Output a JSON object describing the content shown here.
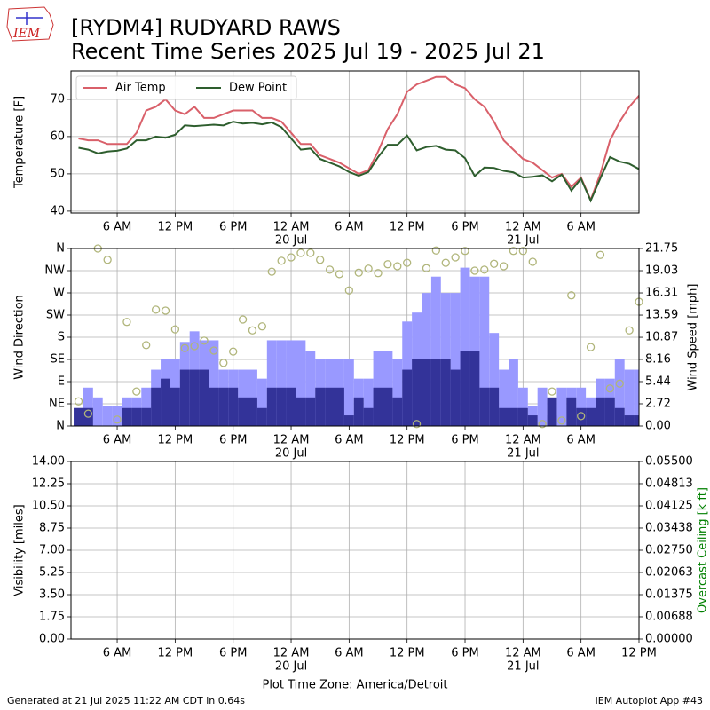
{
  "header": {
    "logo": "IEM",
    "title_line1": "[RYDM4] RUDYARD RAWS",
    "title_line2": "Recent Time Series 2025 Jul 19 - 2025 Jul 21"
  },
  "chart_data": [
    {
      "type": "line",
      "ylabel": "Temperature [F]",
      "grid": true,
      "legend": "upper left",
      "xlim": [
        1.22,
        60
      ],
      "xticks": [
        {
          "value": 6,
          "label": "6 AM"
        },
        {
          "value": 12,
          "label": "12 PM"
        },
        {
          "value": 18,
          "label": "6 PM"
        },
        {
          "value": 24,
          "label": "12 AM"
        },
        {
          "value": 30,
          "label": "6 AM"
        },
        {
          "value": 36,
          "label": "12 PM"
        },
        {
          "value": 42,
          "label": "6 PM"
        },
        {
          "value": 48,
          "label": "12 AM"
        },
        {
          "value": 54,
          "label": "6 AM"
        }
      ],
      "xtick_sublabels": [
        {
          "value": 24,
          "label": "20 Jul"
        },
        {
          "value": 48,
          "label": "21 Jul"
        }
      ],
      "ylim": [
        39.5,
        77.6
      ],
      "yticks": [
        40,
        50,
        60,
        70
      ],
      "x": [
        2,
        3,
        4,
        5,
        6,
        7,
        8,
        9,
        10,
        11,
        12,
        13,
        14,
        15,
        16,
        17,
        18,
        19,
        20,
        21,
        22,
        23,
        24,
        25,
        26,
        27,
        28,
        29,
        30,
        31,
        32,
        33,
        34,
        35,
        36,
        37,
        38,
        39,
        40,
        41,
        42,
        43,
        44,
        45,
        46,
        47,
        48,
        49,
        50,
        51,
        52,
        53,
        54,
        55,
        56,
        57,
        58,
        59,
        60
      ],
      "series": [
        {
          "name": "Air Temp",
          "color": "#d9606a",
          "values": [
            59.5,
            59,
            59,
            58,
            58,
            58,
            61,
            67,
            68,
            70,
            67,
            66,
            68,
            65,
            65,
            66,
            67,
            67,
            67,
            65,
            65,
            64,
            61,
            58,
            58,
            55,
            54,
            53,
            51.5,
            50,
            51,
            56,
            62,
            66,
            72,
            74,
            75,
            76,
            76,
            74,
            73,
            70,
            68,
            64,
            59,
            56.5,
            54,
            53,
            51,
            49,
            50,
            46.5,
            49,
            43,
            50,
            59,
            64,
            68,
            71
          ]
        },
        {
          "name": "Dew Point",
          "color": "#2e5e2e",
          "values": [
            57,
            56.5,
            55.5,
            56,
            56.2,
            56.8,
            59,
            59,
            60,
            59.7,
            60.5,
            63,
            62.8,
            63,
            63.2,
            63,
            64,
            63.5,
            63.7,
            63.3,
            63.8,
            62.5,
            59.5,
            56.5,
            56.8,
            54,
            53,
            52,
            50.5,
            49.5,
            50.5,
            54.5,
            57.8,
            57.8,
            60.3,
            56.3,
            57.2,
            57.5,
            56.5,
            56.3,
            54.2,
            49.4,
            51.7,
            51.6,
            50.8,
            50.4,
            49,
            49.2,
            49.6,
            48,
            49.8,
            45.5,
            48.7,
            42.8,
            48.8,
            54.5,
            53.3,
            52.7,
            51.3
          ]
        }
      ]
    },
    {
      "type": "wind",
      "ylabel": "Wind Direction",
      "y2label": "Wind Speed [mph]",
      "grid": true,
      "xlim": [
        1.22,
        60
      ],
      "xticks": [
        {
          "value": 6,
          "label": "6 AM"
        },
        {
          "value": 12,
          "label": "12 PM"
        },
        {
          "value": 18,
          "label": "6 PM"
        },
        {
          "value": 24,
          "label": "12 AM"
        },
        {
          "value": 30,
          "label": "6 AM"
        },
        {
          "value": 36,
          "label": "12 PM"
        },
        {
          "value": 42,
          "label": "6 PM"
        },
        {
          "value": 48,
          "label": "12 AM"
        },
        {
          "value": 54,
          "label": "6 AM"
        }
      ],
      "xtick_sublabels": [
        {
          "value": 24,
          "label": "20 Jul"
        },
        {
          "value": 48,
          "label": "21 Jul"
        }
      ],
      "ylim": [
        0,
        360
      ],
      "yticks": [
        {
          "value": 0,
          "label": "N"
        },
        {
          "value": 45,
          "label": "NE"
        },
        {
          "value": 90,
          "label": "E"
        },
        {
          "value": 135,
          "label": "SE"
        },
        {
          "value": 180,
          "label": "S"
        },
        {
          "value": 225,
          "label": "SW"
        },
        {
          "value": 270,
          "label": "W"
        },
        {
          "value": 315,
          "label": "NW"
        },
        {
          "value": 360,
          "label": "N"
        }
      ],
      "y2lim": [
        0,
        21.75
      ],
      "y2ticks": [
        {
          "value": 0,
          "label": "0.00"
        },
        2.72,
        5.44,
        8.16,
        10.87,
        13.59,
        16.31,
        19.03,
        21.75
      ],
      "x": [
        2,
        3,
        4,
        5,
        6,
        7,
        8,
        9,
        10,
        11,
        12,
        13,
        14,
        15,
        16,
        17,
        18,
        19,
        20,
        21,
        22,
        23,
        24,
        25,
        26,
        27,
        28,
        29,
        30,
        31,
        32,
        33,
        34,
        35,
        36,
        37,
        38,
        39,
        40,
        41,
        42,
        43,
        44,
        45,
        46,
        47,
        48,
        49,
        50,
        51,
        52,
        53,
        54,
        55,
        56,
        57,
        58,
        59,
        60
      ],
      "series": [
        {
          "type": "bar",
          "axis": "y2",
          "color": "#9999ff",
          "values": [
            2.2,
            4.7,
            3.5,
            2.4,
            2.4,
            3.5,
            3.5,
            4.7,
            6.9,
            8.2,
            8.2,
            10.3,
            11.6,
            10.5,
            10.5,
            6.9,
            6.9,
            6.9,
            6.9,
            5.8,
            10.5,
            10.5,
            10.5,
            10.5,
            9.2,
            8.2,
            8.2,
            8.2,
            8.2,
            5.8,
            5.8,
            9.2,
            9.2,
            8.2,
            12.8,
            13.9,
            16.3,
            18.3,
            16.3,
            16.3,
            19.4,
            18.3,
            18.3,
            11.4,
            6.9,
            8.2,
            4.7,
            2.4,
            4.7,
            1.3,
            4.7,
            4.7,
            4.7,
            3.5,
            5.8,
            5.8,
            8.2,
            6.9,
            6.9
          ]
        },
        {
          "type": "bar",
          "axis": "y2",
          "color": "#333399",
          "values": [
            2.2,
            2.2,
            0,
            0,
            0,
            2.2,
            2.2,
            2.2,
            4.7,
            5.8,
            4.7,
            6.9,
            6.9,
            6.9,
            4.7,
            4.7,
            4.7,
            3.5,
            3.5,
            2.2,
            4.7,
            4.7,
            4.7,
            3.5,
            3.5,
            4.7,
            4.7,
            4.7,
            1.3,
            3.5,
            2.2,
            4.7,
            4.7,
            3.5,
            6.9,
            8.2,
            8.2,
            8.2,
            8.2,
            6.9,
            9.2,
            9.2,
            4.7,
            4.7,
            2.2,
            2.2,
            2.2,
            1.3,
            0,
            3.5,
            0,
            3.5,
            2.2,
            2.2,
            3.5,
            3.5,
            2.2,
            1.3,
            1.3
          ]
        },
        {
          "type": "scatter",
          "axis": "y",
          "color": "#b0b57a",
          "values": [
            50,
            25,
            360,
            337,
            13,
            211,
            70,
            164,
            236,
            234,
            196,
            158,
            162,
            173,
            153,
            128,
            151,
            216,
            194,
            202,
            313,
            335,
            342,
            351,
            351,
            337,
            317,
            308,
            275,
            311,
            319,
            310,
            328,
            324,
            331,
            4,
            320,
            356,
            331,
            342,
            355,
            315,
            317,
            329,
            324,
            355,
            355,
            333,
            4,
            70,
            11,
            265,
            20,
            160,
            347,
            76,
            86,
            194,
            252
          ]
        }
      ]
    },
    {
      "type": "empty",
      "ylabel": "Visibility [miles]",
      "y2label": "Overcast Ceiling [k ft]",
      "y2label_color": "#008000",
      "xlabel": "Plot Time Zone: America/Detroit",
      "grid": true,
      "xlim": [
        1.22,
        60
      ],
      "xticks": [
        {
          "value": 6,
          "label": "6 AM"
        },
        {
          "value": 12,
          "label": "12 PM"
        },
        {
          "value": 18,
          "label": "6 PM"
        },
        {
          "value": 24,
          "label": "12 AM"
        },
        {
          "value": 30,
          "label": "6 AM"
        },
        {
          "value": 36,
          "label": "12 PM"
        },
        {
          "value": 42,
          "label": "6 PM"
        },
        {
          "value": 48,
          "label": "12 AM"
        },
        {
          "value": 54,
          "label": "6 AM"
        },
        {
          "value": 60,
          "label": "12 PM"
        }
      ],
      "xtick_sublabels": [
        {
          "value": 24,
          "label": "20 Jul"
        },
        {
          "value": 48,
          "label": "21 Jul"
        }
      ],
      "ylim": [
        0,
        14
      ],
      "yticks": [
        {
          "value": 0,
          "label": "0.00"
        },
        1.75,
        {
          "value": 3.5,
          "label": "3.50"
        },
        5.25,
        {
          "value": 7,
          "label": "7.00"
        },
        8.75,
        {
          "value": 10.5,
          "label": "10.50"
        },
        12.25,
        {
          "value": 14,
          "label": "14.00"
        }
      ],
      "y2lim": [
        0,
        0.055
      ],
      "y2ticks": [
        {
          "value": 0,
          "label": "0.00000"
        },
        0.00688,
        0.01375,
        0.02063,
        {
          "value": 0.0275,
          "label": "0.02750"
        },
        0.03438,
        0.04125,
        0.04813,
        {
          "value": 0.055,
          "label": "0.05500"
        }
      ]
    }
  ],
  "footer": {
    "left": "Generated at 21 Jul 2025 11:22 AM CDT in 0.64s",
    "right": "IEM Autoplot App #43"
  }
}
